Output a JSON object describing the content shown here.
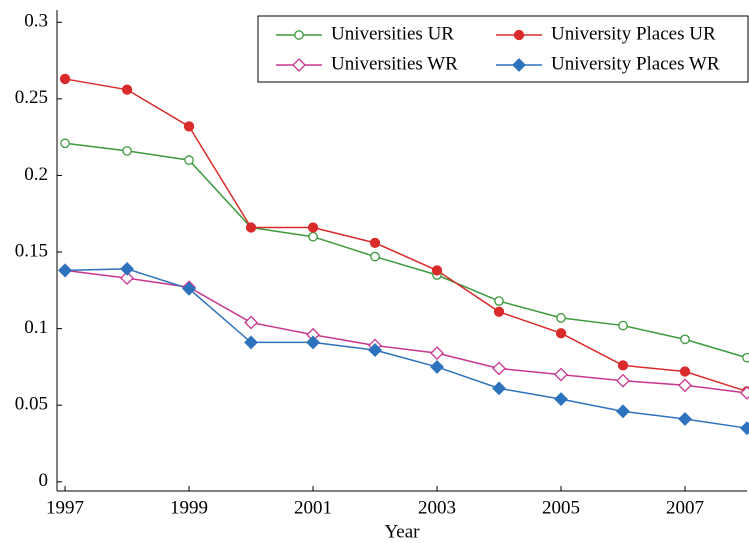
{
  "chart_data": {
    "type": "line",
    "x_label": "Year",
    "x": [
      1997,
      1998,
      1999,
      2000,
      2001,
      2002,
      2003,
      2004,
      2005,
      2006,
      2007,
      2008
    ],
    "series": [
      {
        "name": "Universities UR",
        "color": "#3c9a3c",
        "marker": "circle-open",
        "values": [
          0.221,
          0.216,
          0.21,
          0.166,
          0.16,
          0.147,
          0.135,
          0.118,
          0.107,
          0.102,
          0.093,
          0.081
        ]
      },
      {
        "name": "University Places UR",
        "color": "#d92b2b",
        "marker": "circle-filled",
        "values": [
          0.263,
          0.256,
          0.232,
          0.166,
          0.166,
          0.156,
          0.138,
          0.111,
          0.097,
          0.076,
          0.072,
          0.059
        ]
      },
      {
        "name": "Universities WR",
        "color": "#c8378f",
        "marker": "diamond-open",
        "values": [
          0.138,
          0.133,
          0.127,
          0.104,
          0.096,
          0.089,
          0.084,
          0.074,
          0.07,
          0.066,
          0.063,
          0.058
        ]
      },
      {
        "name": "University Places WR",
        "color": "#2d72bd",
        "marker": "diamond-filled",
        "values": [
          0.138,
          0.139,
          0.126,
          0.091,
          0.091,
          0.086,
          0.075,
          0.061,
          0.054,
          0.046,
          0.041,
          0.035
        ]
      }
    ],
    "xlim": [
      1996.87,
      2008
    ],
    "xticks": [
      1997,
      1999,
      2001,
      2003,
      2005,
      2007
    ],
    "ylim": [
      -0.006,
      0.308
    ],
    "yticks": [
      0,
      0.05,
      0.1,
      0.15,
      0.2,
      0.25,
      0.3
    ],
    "legend": "upper right"
  }
}
